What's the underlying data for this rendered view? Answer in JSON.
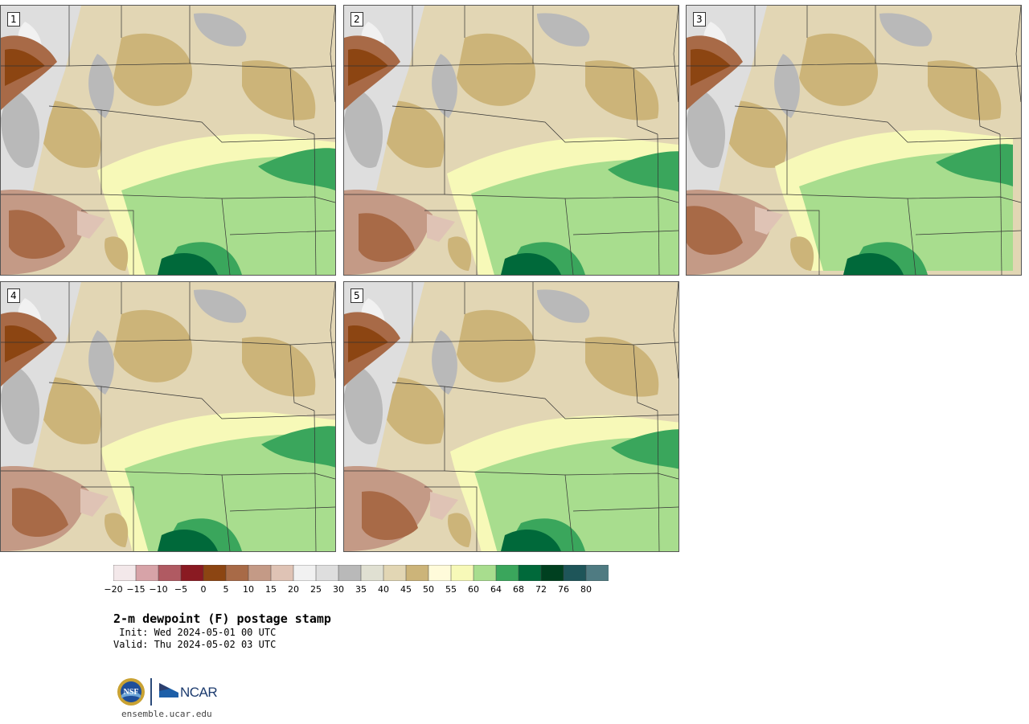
{
  "panels": [
    {
      "label": "1"
    },
    {
      "label": "2"
    },
    {
      "label": "3"
    },
    {
      "label": "4"
    },
    {
      "label": "5"
    }
  ],
  "colorbar": {
    "colors": [
      "#f3e8ea",
      "#d7a3a8",
      "#b05a62",
      "#8a1a22",
      "#8c4512",
      "#a86a47",
      "#c49a86",
      "#dfc3b5",
      "#f1f1f1",
      "#dedede",
      "#b9b9b9",
      "#e0e0d2",
      "#e2d6b4",
      "#ccb479",
      "#fffbda",
      "#f7f9b8",
      "#a8dd8e",
      "#3aa65c",
      "#00693a",
      "#004020",
      "#1e5559",
      "#4f7b82"
    ],
    "tick_labels": [
      "−20",
      "−15",
      "−10",
      "−5",
      "0",
      "5",
      "10",
      "15",
      "20",
      "25",
      "30",
      "35",
      "40",
      "45",
      "50",
      "55",
      "60",
      "64",
      "68",
      "72",
      "76",
      "80"
    ]
  },
  "title": "2-m dewpoint (F) postage stamp",
  "init_line": " Init: Wed 2024-05-01 00 UTC",
  "valid_line": "Valid: Thu 2024-05-02 03 UTC",
  "logos": {
    "nsf": "NSF",
    "ncar": "NCAR"
  },
  "site": "ensemble.ucar.edu"
}
